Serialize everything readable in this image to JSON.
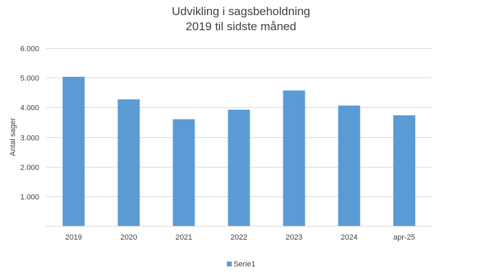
{
  "chart_data": {
    "type": "bar",
    "title_line1": "Udvikling i sagsbeholdning",
    "title_line2": "2019 til sidste måned",
    "xlabel": "",
    "ylabel": "Antal sager",
    "categories": [
      "2019",
      "2020",
      "2021",
      "2022",
      "2023",
      "2024",
      "apr-25"
    ],
    "series": [
      {
        "name": "Serie1",
        "values": [
          5030,
          4270,
          3600,
          3920,
          4570,
          4060,
          3730
        ],
        "color": "#5B9BD5"
      }
    ],
    "ylim": [
      0,
      6000
    ],
    "yticks": [
      0,
      1000,
      2000,
      3000,
      4000,
      5000,
      6000
    ],
    "ytick_labels": [
      "",
      "1.000",
      "2.000",
      "3.000",
      "4.000",
      "5.000",
      "6.000"
    ],
    "grid": true,
    "grid_color": "#d9d9d9",
    "legend_position": "bottom"
  }
}
